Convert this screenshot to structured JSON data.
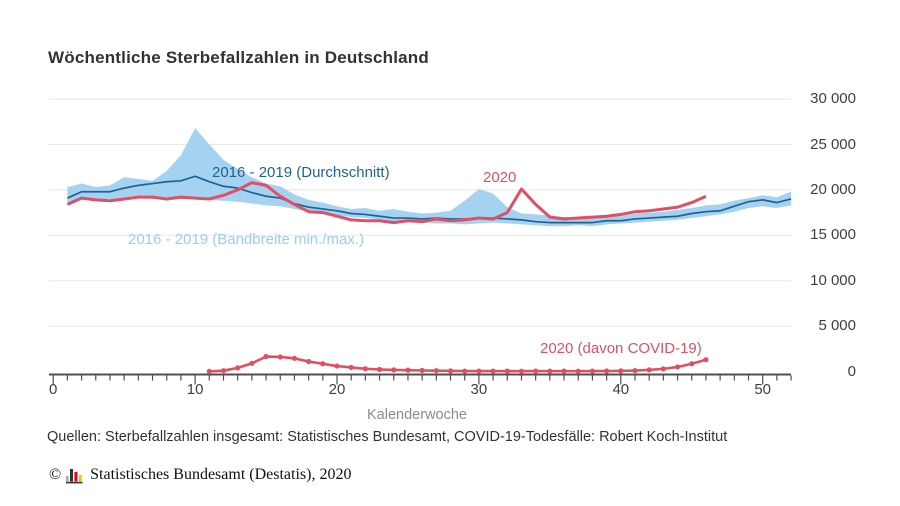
{
  "page": {
    "title": "Wöchentliche Sterbefallzahlen in Deutschland"
  },
  "annotations": {
    "avg_label": "2016 - 2019 (Durchschnitt)",
    "year_label": "2020",
    "band_label": "2016 - 2019 (Bandbreite min./max.)",
    "covid_label": "2020 (davon COVID-19)"
  },
  "footer": {
    "sources": "Quellen: Sterbefallzahlen insgesamt: Statistisches Bundesamt, COVID-19-Todesfälle: Robert Koch-Institut",
    "copyright_symbol": "©",
    "copyright_text": "Statistisches Bundesamt (Destatis), 2020"
  },
  "colors": {
    "band_fill": "#a5d2f1",
    "avg_line": "#1f6391",
    "line_2020": "#e14f63",
    "grid": "#e8e8e8",
    "axis": "#4f4f4f",
    "logo_gray": "#a9a9a9",
    "logo_dark": "#333333",
    "logo_red": "#e2001a",
    "logo_yellow": "#f5c400"
  },
  "chart_data": {
    "type": "line",
    "title": "Wöchentliche Sterbefallzahlen in Deutschland",
    "xlabel": "Kalenderwoche",
    "ylabel": "",
    "xlim": [
      0,
      52
    ],
    "ylim": [
      0,
      30000
    ],
    "grid": true,
    "x_ticks": [
      0,
      10,
      20,
      30,
      40,
      50
    ],
    "x_tick_labels": [
      "0",
      "10",
      "20",
      "30",
      "40",
      "50"
    ],
    "x_minor_tick_step": 1,
    "y_ticks": [
      0,
      5000,
      10000,
      15000,
      20000,
      25000,
      30000
    ],
    "y_tick_labels": [
      "0",
      "5 000",
      "10 000",
      "15 000",
      "20 000",
      "25 000",
      "30 000"
    ],
    "series": [
      {
        "name": "2016 - 2019 (Bandbreite min./max.)",
        "type": "band",
        "start_week": 1,
        "max": [
          20300,
          20700,
          20300,
          20500,
          21400,
          21200,
          21000,
          22100,
          23800,
          26800,
          25000,
          23300,
          22300,
          21400,
          20700,
          20400,
          19500,
          18900,
          18600,
          18200,
          17900,
          18000,
          17700,
          17900,
          17600,
          17400,
          17500,
          17700,
          18800,
          20100,
          19600,
          18100,
          17400,
          17300,
          17200,
          17000,
          17000,
          16900,
          17100,
          17200,
          17400,
          17500,
          17600,
          17800,
          18000,
          18300,
          18400,
          18800,
          19100,
          19400,
          19200,
          19800
        ],
        "min": [
          18500,
          18900,
          19000,
          19000,
          19100,
          19100,
          19000,
          19000,
          19000,
          19000,
          18900,
          18800,
          18700,
          18500,
          18300,
          18200,
          17900,
          17600,
          17400,
          17200,
          17000,
          16900,
          16700,
          16500,
          16500,
          16400,
          16300,
          16300,
          16200,
          16300,
          16400,
          16300,
          16200,
          16100,
          16000,
          16000,
          16100,
          16000,
          16200,
          16300,
          16400,
          16500,
          16600,
          16700,
          16900,
          17100,
          17300,
          17600,
          18000,
          18200,
          18000,
          18300
        ]
      },
      {
        "name": "2016 - 2019 (Durchschnitt)",
        "type": "line",
        "start_week": 1,
        "values": [
          19100,
          19800,
          19800,
          19800,
          20200,
          20500,
          20700,
          20900,
          21000,
          21500,
          20900,
          20400,
          20200,
          19700,
          19300,
          19100,
          18500,
          18100,
          17900,
          17700,
          17400,
          17300,
          17100,
          16900,
          16900,
          16800,
          16900,
          16800,
          16800,
          16900,
          16900,
          16800,
          16700,
          16500,
          16400,
          16400,
          16400,
          16400,
          16600,
          16600,
          16800,
          16900,
          17000,
          17100,
          17400,
          17600,
          17700,
          18200,
          18700,
          18900,
          18600,
          19000
        ]
      },
      {
        "name": "2020",
        "type": "line",
        "start_week": 1,
        "values": [
          18400,
          19100,
          18900,
          18800,
          19000,
          19200,
          19200,
          19000,
          19200,
          19100,
          19000,
          19400,
          20000,
          20800,
          20500,
          19300,
          18400,
          17600,
          17500,
          17100,
          16700,
          16600,
          16600,
          16400,
          16600,
          16500,
          16800,
          16600,
          16700,
          16900,
          16800,
          17500,
          20100,
          18400,
          17000,
          16800,
          16900,
          17000,
          17100,
          17300,
          17600,
          17700,
          17900,
          18100,
          18600,
          19300
        ]
      },
      {
        "name": "2020 (davon COVID-19)",
        "type": "line_markers",
        "start_week": 11,
        "values": [
          10,
          90,
          400,
          900,
          1650,
          1600,
          1450,
          1100,
          850,
          600,
          450,
          300,
          220,
          180,
          150,
          110,
          90,
          70,
          50,
          45,
          45,
          40,
          35,
          45,
          40,
          40,
          35,
          45,
          55,
          70,
          100,
          180,
          290,
          500,
          850,
          1300
        ]
      }
    ]
  }
}
